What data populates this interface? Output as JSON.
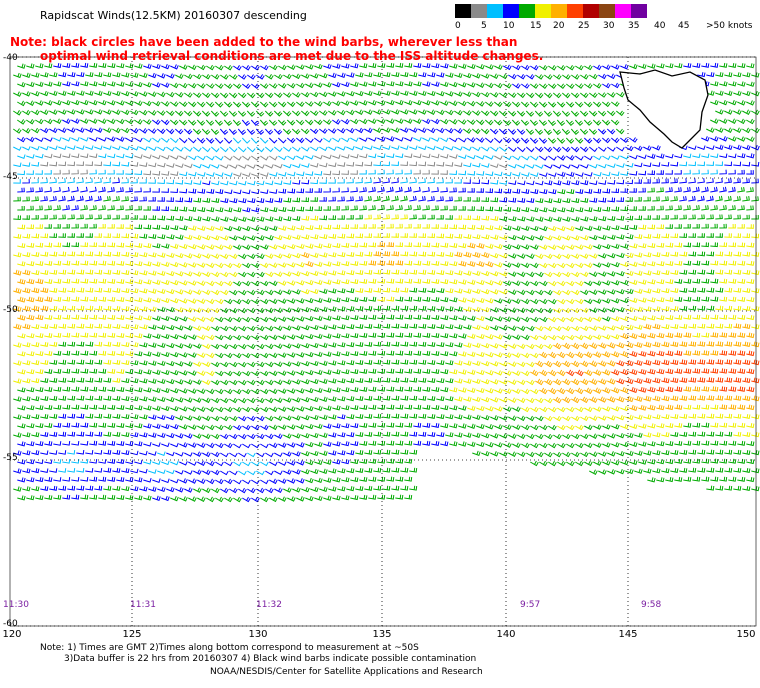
{
  "title": "Rapidscat Winds(12.5KM) 20160307 descending",
  "note": {
    "line1": "Note: black circles have been added to the wind barbs, wherever less than",
    "line2": "optimal wind retrieval conditions are met due to the ISS altitude changes."
  },
  "speed_scale": {
    "labels": [
      "0",
      "5",
      "10",
      "15",
      "20",
      "25",
      "30",
      "35",
      "40",
      "45",
      ">50 knots"
    ],
    "colors": [
      "#000000",
      "#8a8a8a",
      "#00bfff",
      "#0000ff",
      "#00aa00",
      "#f0f000",
      "#ffb000",
      "#ff4000",
      "#b00000",
      "#8b4513",
      "#ff00ff",
      "#7000a0"
    ]
  },
  "lat_labels": [
    "-40",
    "-45",
    "-50",
    "-55",
    "-60"
  ],
  "lon_labels": [
    "120",
    "125",
    "130",
    "135",
    "140",
    "145",
    "150"
  ],
  "times": [
    "11:30",
    "11:31",
    "11:32",
    "9:57",
    "9:58"
  ],
  "footer": {
    "line1": "Note: 1) Times are GMT 2)Times along bottom correspond to measurement at ~50S",
    "line2": "3)Data buffer is 22 hrs from 20160307 4) Black wind barbs indicate possible contamination",
    "line3": "NOAA/NESDIS/Center for Satellite Applications and Research"
  }
}
